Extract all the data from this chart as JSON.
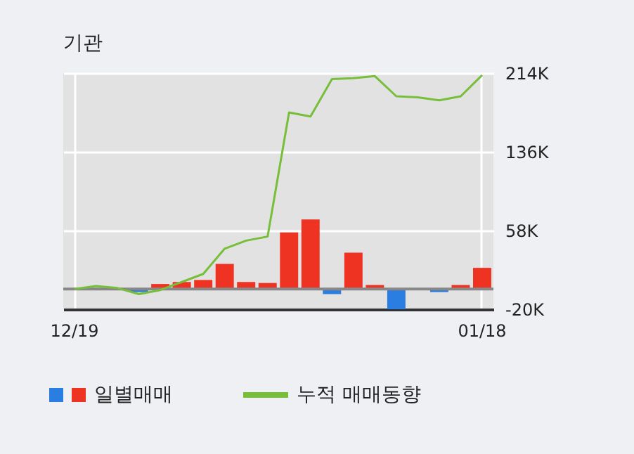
{
  "chart_data": {
    "type": "bar",
    "title": "기관",
    "categories": [
      "12/19",
      null,
      null,
      null,
      null,
      null,
      null,
      null,
      null,
      null,
      null,
      null,
      null,
      null,
      null,
      null,
      null,
      null,
      null,
      "01/18"
    ],
    "series": [
      {
        "name": "일별매매",
        "colors": [
          "#ee3322",
          "#ee3322",
          "#2a7de1",
          "#2a7de1",
          "#ee3322",
          "#ee3322",
          "#ee3322",
          "#ee3322",
          "#ee3322",
          "#ee3322",
          "#ee3322",
          "#ee3322",
          "#2a7de1",
          "#ee3322",
          "#ee3322",
          "#2a7de1",
          "#ee3322",
          "#2a7de1",
          "#ee3322",
          "#ee3322"
        ],
        "values": [
          null,
          null,
          null,
          -3,
          5,
          7,
          9,
          25,
          7,
          6,
          56,
          69,
          -5,
          36,
          4,
          -20,
          0,
          -3,
          4,
          21
        ]
      },
      {
        "name": "누적 매매동향",
        "type": "line",
        "color": "#77bf3a",
        "values": [
          0,
          3,
          1,
          -5,
          -1,
          7,
          15,
          40,
          48,
          52,
          175,
          171,
          208,
          209,
          211,
          191,
          190,
          187,
          191,
          212
        ]
      }
    ],
    "ylim": [
      -20,
      214
    ],
    "yticks": [
      {
        "value": -20,
        "label": "-20K"
      },
      {
        "value": 58,
        "label": "58K"
      },
      {
        "value": 136,
        "label": "136K"
      },
      {
        "value": 214,
        "label": "214K"
      }
    ],
    "ref_lines": [
      {
        "axis": "y",
        "value": 0,
        "color": "#888888"
      }
    ],
    "grid": true,
    "legend": "bottom"
  }
}
